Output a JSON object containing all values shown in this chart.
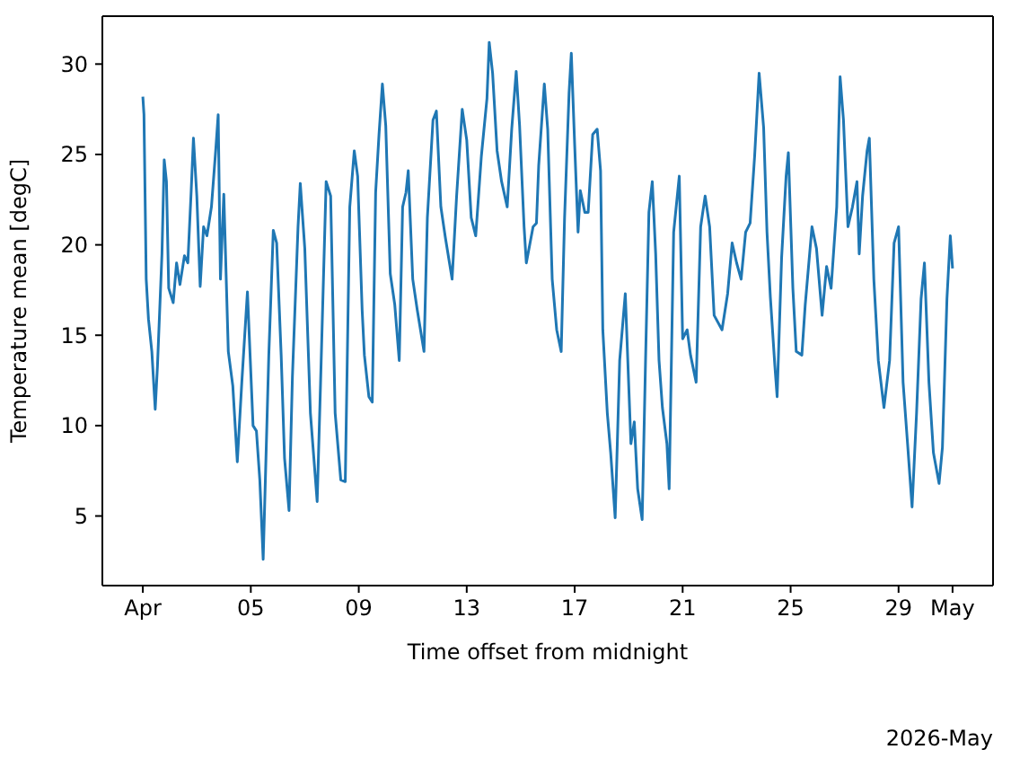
{
  "chart_data": {
    "type": "line",
    "xlabel": "Time offset from midnight",
    "ylabel": "Temperature mean [degC]",
    "annotations": [
      "2026-May"
    ],
    "xlim": [
      "2026-03-30T12:00",
      "2026-05-02T12:00"
    ],
    "xticks": [
      {
        "value": "2026-04-01",
        "label": "Apr"
      },
      {
        "value": "2026-04-05",
        "label": "05"
      },
      {
        "value": "2026-04-09",
        "label": "09"
      },
      {
        "value": "2026-04-13",
        "label": "13"
      },
      {
        "value": "2026-04-17",
        "label": "17"
      },
      {
        "value": "2026-04-21",
        "label": "21"
      },
      {
        "value": "2026-04-25",
        "label": "25"
      },
      {
        "value": "2026-04-29",
        "label": "29"
      },
      {
        "value": "2026-05-01",
        "label": "May"
      }
    ],
    "ylim": [
      1.15,
      32.65
    ],
    "yticks": [
      5,
      10,
      15,
      20,
      25,
      30
    ],
    "x": [
      "2026-04-01T00:00",
      "2026-04-01T01:00",
      "2026-04-01T03:00",
      "2026-04-01T05:00",
      "2026-04-01T08:00",
      "2026-04-01T11:00",
      "2026-04-01T13:00",
      "2026-04-01T17:00",
      "2026-04-01T19:00",
      "2026-04-01T21:00",
      "2026-04-01T23:00",
      "2026-04-02T03:00",
      "2026-04-02T06:00",
      "2026-04-02T09:00",
      "2026-04-02T13:00",
      "2026-04-02T16:00",
      "2026-04-02T19:00",
      "2026-04-02T21:00",
      "2026-04-03T00:00",
      "2026-04-03T03:00",
      "2026-04-03T06:00",
      "2026-04-03T09:00",
      "2026-04-03T13:00",
      "2026-04-03T17:00",
      "2026-04-03T19:00",
      "2026-04-03T21:00",
      "2026-04-04T00:00",
      "2026-04-04T04:00",
      "2026-04-04T08:00",
      "2026-04-04T12:00",
      "2026-04-04T16:00",
      "2026-04-04T21:00",
      "2026-04-05T02:00",
      "2026-04-05T05:00",
      "2026-04-05T08:00",
      "2026-04-05T11:00",
      "2026-04-05T16:00",
      "2026-04-05T20:00",
      "2026-04-05T23:00",
      "2026-04-06T03:00",
      "2026-04-06T06:00",
      "2026-04-06T10:00",
      "2026-04-06T13:00",
      "2026-04-06T18:00",
      "2026-04-06T20:00",
      "2026-04-07T00:00",
      "2026-04-07T05:00",
      "2026-04-07T11:00",
      "2026-04-07T14:00",
      "2026-04-07T19:00",
      "2026-04-07T23:00",
      "2026-04-08T03:00",
      "2026-04-08T08:00",
      "2026-04-08T12:00",
      "2026-04-08T16:00",
      "2026-04-08T20:00",
      "2026-04-08T23:00",
      "2026-04-09T03:00",
      "2026-04-09T05:00",
      "2026-04-09T09:00",
      "2026-04-09T12:00",
      "2026-04-09T15:00",
      "2026-04-09T18:00",
      "2026-04-09T21:00",
      "2026-04-10T00:00",
      "2026-04-10T04:00",
      "2026-04-10T08:00",
      "2026-04-10T12:00",
      "2026-04-10T15:00",
      "2026-04-10T18:00",
      "2026-04-10T20:00",
      "2026-04-11T00:00",
      "2026-04-11T04:00",
      "2026-04-11T10:00",
      "2026-04-11T13:00",
      "2026-04-11T18:00",
      "2026-04-11T21:00",
      "2026-04-12T01:00",
      "2026-04-12T05:00",
      "2026-04-12T11:00",
      "2026-04-12T15:00",
      "2026-04-12T20:00",
      "2026-04-13T00:00",
      "2026-04-13T04:00",
      "2026-04-13T08:00",
      "2026-04-13T13:00",
      "2026-04-13T18:00",
      "2026-04-13T20:00",
      "2026-04-13T23:00",
      "2026-04-14T03:00",
      "2026-04-14T07:00",
      "2026-04-14T12:00",
      "2026-04-14T16:00",
      "2026-04-14T20:00",
      "2026-04-14T23:00",
      "2026-04-15T03:00",
      "2026-04-15T05:00",
      "2026-04-15T11:00",
      "2026-04-15T14:00",
      "2026-04-15T16:00",
      "2026-04-15T21:00",
      "2026-04-16T00:00",
      "2026-04-16T04:00",
      "2026-04-16T08:00",
      "2026-04-16T12:00",
      "2026-04-16T15:00",
      "2026-04-16T19:00",
      "2026-04-16T21:00",
      "2026-04-17T00:00",
      "2026-04-17T03:00",
      "2026-04-17T05:00",
      "2026-04-17T09:00",
      "2026-04-17T12:00",
      "2026-04-17T16:00",
      "2026-04-17T20:00",
      "2026-04-17T23:00",
      "2026-04-18T01:00",
      "2026-04-18T05:00",
      "2026-04-18T08:00",
      "2026-04-18T12:00",
      "2026-04-18T16:00",
      "2026-04-18T21:00",
      "2026-04-19T02:00",
      "2026-04-19T05:00",
      "2026-04-19T08:00",
      "2026-04-19T12:00",
      "2026-04-19T15:00",
      "2026-04-19T18:00",
      "2026-04-19T21:00",
      "2026-04-20T00:00",
      "2026-04-20T03:00",
      "2026-04-20T06:00",
      "2026-04-20T10:00",
      "2026-04-20T12:00",
      "2026-04-20T16:00",
      "2026-04-20T21:00",
      "2026-04-21T00:00",
      "2026-04-21T04:00",
      "2026-04-21T07:00",
      "2026-04-21T12:00",
      "2026-04-21T16:00",
      "2026-04-21T20:00",
      "2026-04-22T00:00",
      "2026-04-22T04:00",
      "2026-04-22T11:00",
      "2026-04-22T16:00",
      "2026-04-22T20:00",
      "2026-04-23T00:00",
      "2026-04-23T04:00",
      "2026-04-23T08:00",
      "2026-04-23T12:00",
      "2026-04-23T16:00",
      "2026-04-23T20:00",
      "2026-04-24T00:00",
      "2026-04-24T03:00",
      "2026-04-24T06:00",
      "2026-04-24T10:00",
      "2026-04-24T12:00",
      "2026-04-24T16:00",
      "2026-04-24T20:00",
      "2026-04-24T22:00",
      "2026-04-25T02:00",
      "2026-04-25T05:00",
      "2026-04-25T10:00",
      "2026-04-25T13:00",
      "2026-04-25T19:00",
      "2026-04-25T23:00",
      "2026-04-26T04:00",
      "2026-04-26T08:00",
      "2026-04-26T12:00",
      "2026-04-26T17:00",
      "2026-04-26T20:00",
      "2026-04-26T23:00",
      "2026-04-27T03:00",
      "2026-04-27T07:00",
      "2026-04-27T11:00",
      "2026-04-27T13:00",
      "2026-04-27T16:00",
      "2026-04-27T20:00",
      "2026-04-27T22:00",
      "2026-04-28T02:00",
      "2026-04-28T06:00",
      "2026-04-28T11:00",
      "2026-04-28T16:00",
      "2026-04-28T20:00",
      "2026-04-29T00:00",
      "2026-04-29T04:00",
      "2026-04-29T08:00",
      "2026-04-29T12:00",
      "2026-04-29T16:00",
      "2026-04-29T20:00",
      "2026-04-29T23:00",
      "2026-04-30T03:00",
      "2026-04-30T07:00",
      "2026-04-30T12:00",
      "2026-04-30T15:00",
      "2026-04-30T19:00",
      "2026-04-30T22:00",
      "2026-05-01T00:00"
    ],
    "series": [
      {
        "color": "#1f77b4",
        "values": [
          28.2,
          27.2,
          18.1,
          15.9,
          14.1,
          10.9,
          13.3,
          19.5,
          24.7,
          23.5,
          17.6,
          16.8,
          19.0,
          17.8,
          19.4,
          19.0,
          23.0,
          25.9,
          22.7,
          17.7,
          21.0,
          20.5,
          22.1,
          25.4,
          27.2,
          18.1,
          22.8,
          14.1,
          12.2,
          8.0,
          12.4,
          17.4,
          10.0,
          9.7,
          7.0,
          2.6,
          13.9,
          20.8,
          20.1,
          13.9,
          8.2,
          5.3,
          12.7,
          21.0,
          23.4,
          19.8,
          10.7,
          5.8,
          12.3,
          23.5,
          22.7,
          10.7,
          7.0,
          6.9,
          22.1,
          25.2,
          23.8,
          16.4,
          13.9,
          11.6,
          11.3,
          22.9,
          26.1,
          28.9,
          26.6,
          18.4,
          16.7,
          13.6,
          22.1,
          22.9,
          24.1,
          18.1,
          16.4,
          14.1,
          21.5,
          26.9,
          27.4,
          22.1,
          20.4,
          18.1,
          22.7,
          27.5,
          25.8,
          21.5,
          20.5,
          24.9,
          28.1,
          31.2,
          29.5,
          25.2,
          23.5,
          22.1,
          26.4,
          29.6,
          26.6,
          21.0,
          19.0,
          21.0,
          21.2,
          24.4,
          28.9,
          26.4,
          18.1,
          15.3,
          14.1,
          21.5,
          28.4,
          30.6,
          25.5,
          20.7,
          23.0,
          21.8,
          21.8,
          26.1,
          26.4,
          24.1,
          15.3,
          10.7,
          8.5,
          4.9,
          13.6,
          17.3,
          9.0,
          10.2,
          6.5,
          4.8,
          13.6,
          21.8,
          23.5,
          19.5,
          13.6,
          11.0,
          9.0,
          6.5,
          20.7,
          23.8,
          14.8,
          15.3,
          13.9,
          12.4,
          21.0,
          22.7,
          21.0,
          16.1,
          15.3,
          17.3,
          20.1,
          19.0,
          18.1,
          20.7,
          21.2,
          24.9,
          29.5,
          26.5,
          20.7,
          17.1,
          13.3,
          11.6,
          19.3,
          23.8,
          25.1,
          17.6,
          14.1,
          13.9,
          16.7,
          21.0,
          19.8,
          16.1,
          18.8,
          17.6,
          22.1,
          29.3,
          26.9,
          21.0,
          22.1,
          23.5,
          19.5,
          22.7,
          25.2,
          25.9,
          18.1,
          13.6,
          11.0,
          13.6,
          20.1,
          21.0,
          12.4,
          9.0,
          5.5,
          10.7,
          17.0,
          19.0,
          12.4,
          8.5,
          6.8,
          8.8,
          17.0,
          20.5,
          18.7
        ]
      }
    ]
  }
}
